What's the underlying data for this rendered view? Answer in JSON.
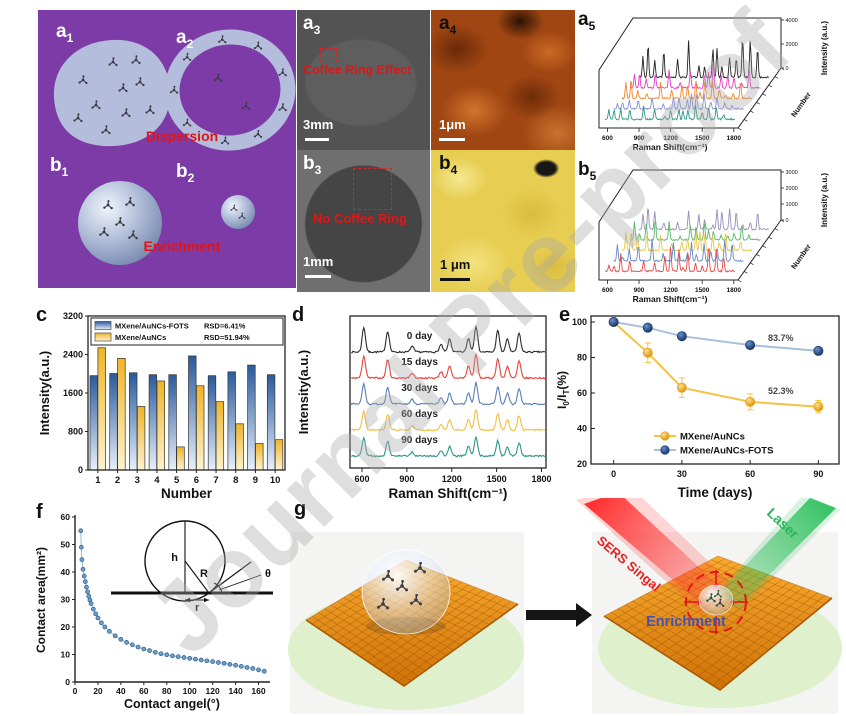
{
  "figure": {
    "watermark": "Journal Pre-proof",
    "panel_letters": {
      "c": "c",
      "d": "d",
      "e": "e",
      "f": "f",
      "g": "g"
    },
    "schematic": {
      "a1": {
        "base": "a",
        "sub": "1"
      },
      "a2": {
        "base": "a",
        "sub": "2"
      },
      "b1": {
        "base": "b",
        "sub": "1"
      },
      "b2": {
        "base": "b",
        "sub": "2"
      },
      "dispersion": "Dispersion",
      "enrichment": "Enrichment"
    },
    "micrographs": {
      "a3": {
        "label": {
          "base": "a",
          "sub": "3"
        },
        "annotation": "Coffee Ring Effect",
        "scalebar": "3mm"
      },
      "a4": {
        "label": {
          "base": "a",
          "sub": "4"
        },
        "scalebar": "1μm"
      },
      "b3": {
        "label": {
          "base": "b",
          "sub": "3"
        },
        "annotation": "No Coffee Ring",
        "scalebar": "1mm"
      },
      "b4": {
        "label": {
          "base": "b",
          "sub": "4"
        },
        "scalebar": "1 μm"
      }
    },
    "waterfall_labels": {
      "a5": {
        "base": "a",
        "sub": "5"
      },
      "b5": {
        "base": "b",
        "sub": "5"
      }
    },
    "g_panel": {
      "label": "g",
      "sers_label": "SERS Singal",
      "laser_label": "Laser",
      "enrichment_label": "Enrichment"
    }
  },
  "colors": {
    "purple_bg": "#7c3ba6",
    "droplet_blue": "#b4bedc",
    "red_annotation": "#e31414",
    "bar_blue_top": "#2a5a9c",
    "bar_blue_bottom": "#e8f0fa",
    "bar_yellow_top": "#f0b428",
    "bar_yellow_bottom": "#fdf4d0",
    "series_yellow": "#f5c243",
    "series_blue_line": "#a8c0dc",
    "series_blue_marker": "#1f3f78",
    "scatter_blue": "#6f9ec6",
    "plane_orange": "#f59b1e",
    "scene_green": "#dff0cc",
    "laser_green": "#2bb45a",
    "sers_red": "#e82020",
    "enrichment_blue": "#4553b0"
  },
  "chart_data": [
    {
      "panel": "a5",
      "type": "line",
      "subtype": "3d_waterfall",
      "xlabel": "Raman Shift(cm⁻¹)",
      "ylabel": "Intensity (a.u.)",
      "zlabel": "Number",
      "xticks": [
        600,
        900,
        1200,
        1500,
        1800
      ],
      "xlim": [
        520,
        1840
      ],
      "yticks": [
        0,
        2000,
        4000
      ],
      "n_traces": 5,
      "trace_colors_front_to_back": [
        "#2e9688",
        "#8890d8",
        "#f08828",
        "#e83cc8",
        "#222222"
      ],
      "trace_amplitudes": [
        16,
        18,
        20,
        24,
        42
      ],
      "peaks": [
        560,
        612,
        680,
        772,
        912,
        1024,
        1128,
        1186,
        1270,
        1312,
        1362,
        1440,
        1508,
        1572,
        1650,
        1724
      ],
      "seed": 11
    },
    {
      "panel": "b5",
      "type": "line",
      "subtype": "3d_waterfall",
      "xlabel": "Raman Shift(cm⁻¹)",
      "ylabel": "Intensity (a.u.)",
      "zlabel": "Number",
      "xticks": [
        600,
        900,
        1200,
        1500,
        1800
      ],
      "xlim": [
        520,
        1840
      ],
      "yticks": [
        0,
        1000,
        2000,
        3000
      ],
      "n_traces": 5,
      "trace_colors_front_to_back": [
        "#e84848",
        "#6888c8",
        "#e8c848",
        "#58b868",
        "#9890b8"
      ],
      "trace_amplitudes": [
        26,
        22,
        20,
        22,
        24
      ],
      "peaks": [
        560,
        612,
        680,
        772,
        912,
        1024,
        1128,
        1186,
        1270,
        1312,
        1362,
        1440,
        1508,
        1572,
        1650,
        1724
      ],
      "seed": 23
    },
    {
      "panel": "c",
      "type": "bar",
      "xlabel": "Number",
      "ylabel": "Intensity(a.u.)",
      "categories": [
        1,
        2,
        3,
        4,
        5,
        6,
        7,
        8,
        9,
        10
      ],
      "yticks": [
        0,
        800,
        1600,
        2400,
        3200
      ],
      "ylim": [
        0,
        3200
      ],
      "series": [
        {
          "name": "MXene/AuNCs-FOTS",
          "rsd_label": "RSD=6.41%",
          "values": [
            1960,
            2005,
            2020,
            1980,
            1980,
            2370,
            1960,
            2040,
            2180,
            1980
          ]
        },
        {
          "name": "MXene/AuNCs",
          "rsd_label": "RSD=51.94%",
          "values": [
            2540,
            2320,
            1320,
            1850,
            480,
            1750,
            1420,
            960,
            550,
            630
          ]
        }
      ]
    },
    {
      "panel": "d",
      "type": "line",
      "subtype": "stacked_spectra",
      "xlabel": "Raman Shift(cm⁻¹)",
      "ylabel": "Intensity(a.u.)",
      "xticks": [
        600,
        900,
        1200,
        1500,
        1800
      ],
      "xlim": [
        520,
        1830
      ],
      "traces": [
        {
          "label": "0 day",
          "color": "#2b2b2b"
        },
        {
          "label": "15 days",
          "color": "#e8433e"
        },
        {
          "label": "30 days",
          "color": "#5b7fb5"
        },
        {
          "label": "60 days",
          "color": "#f0c040"
        },
        {
          "label": "90 days",
          "color": "#2e9688"
        }
      ],
      "peak_positions": [
        612,
        772,
        935,
        1128,
        1186,
        1312,
        1362,
        1508,
        1572,
        1650
      ],
      "peak_rel_heights": [
        0.95,
        0.8,
        0.22,
        0.28,
        0.5,
        0.52,
        1.0,
        0.82,
        0.5,
        0.72
      ],
      "trace_scales": [
        1,
        0.9,
        0.82,
        0.78,
        0.72
      ],
      "seed": 7
    },
    {
      "panel": "e",
      "type": "line",
      "xlabel": "Time (days)",
      "ylabel": "I0/IT(%)",
      "ylabel_parts": [
        "I",
        "0",
        "/I",
        "T",
        "(%)"
      ],
      "x": [
        0,
        15,
        30,
        60,
        90
      ],
      "xticks": [
        0,
        30,
        60,
        90
      ],
      "yticks": [
        20,
        40,
        60,
        80,
        100
      ],
      "ylim": [
        20,
        105
      ],
      "series": [
        {
          "name": "MXene/AuNCs",
          "color": "#f5c243",
          "marker_color": "#e8a81e",
          "values": [
            100,
            82.7,
            63,
            55,
            52.3
          ],
          "errors": [
            1.5,
            5.5,
            5.5,
            4.5,
            3.5
          ],
          "annotation": "52.3%"
        },
        {
          "name": "MXene/AuNCs-FOTS",
          "color": "#a8c0dc",
          "marker_color": "#1f3f78",
          "values": [
            100,
            96.8,
            92,
            87,
            83.7
          ],
          "errors": [
            1,
            1.5,
            1.5,
            1.5,
            1.5
          ],
          "annotation": "83.7%"
        }
      ]
    },
    {
      "panel": "f",
      "type": "scatter",
      "xlabel": "Contact angel(°)",
      "ylabel": "Contact area(mm²)",
      "xticks": [
        0,
        20,
        40,
        60,
        80,
        100,
        120,
        140,
        160
      ],
      "yticks": [
        0,
        10,
        20,
        30,
        40,
        50,
        60
      ],
      "xlim": [
        0,
        170
      ],
      "ylim": [
        0,
        60
      ],
      "points": [
        [
          5,
          55
        ],
        [
          5.5,
          49
        ],
        [
          6,
          44.5
        ],
        [
          7,
          41
        ],
        [
          8,
          38.5
        ],
        [
          9,
          36.5
        ],
        [
          10,
          34.5
        ],
        [
          11,
          32.8
        ],
        [
          12,
          31.2
        ],
        [
          13,
          29.8
        ],
        [
          14,
          28.5
        ],
        [
          16,
          26.5
        ],
        [
          18,
          24.8
        ],
        [
          20,
          23.3
        ],
        [
          23,
          21.5
        ],
        [
          26,
          20
        ],
        [
          30,
          18.4
        ],
        [
          35,
          16.8
        ],
        [
          40,
          15.5
        ],
        [
          45,
          14.4
        ],
        [
          50,
          13.5
        ],
        [
          55,
          12.7
        ],
        [
          60,
          12
        ],
        [
          65,
          11.4
        ],
        [
          70,
          10.8
        ],
        [
          75,
          10.3
        ],
        [
          80,
          9.9
        ],
        [
          85,
          9.5
        ],
        [
          90,
          9.2
        ],
        [
          95,
          8.9
        ],
        [
          100,
          8.6
        ],
        [
          105,
          8.3
        ],
        [
          110,
          8
        ],
        [
          115,
          7.7
        ],
        [
          120,
          7.4
        ],
        [
          125,
          7.1
        ],
        [
          130,
          6.8
        ],
        [
          135,
          6.4
        ],
        [
          140,
          6.1
        ],
        [
          145,
          5.7
        ],
        [
          150,
          5.3
        ],
        [
          155,
          4.9
        ],
        [
          160,
          4.4
        ],
        [
          165,
          3.9
        ]
      ],
      "inset": {
        "labels": [
          "h",
          "R",
          "θ",
          "r"
        ]
      }
    }
  ]
}
